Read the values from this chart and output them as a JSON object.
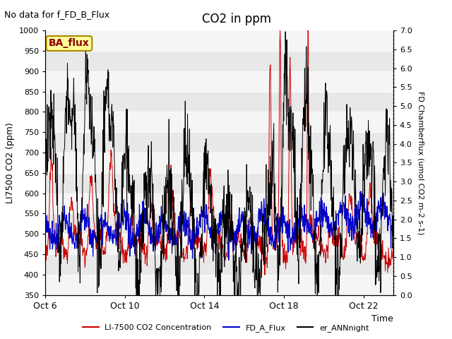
{
  "title": "CO2 in ppm",
  "no_data_text": "No data for f_FD_B_Flux",
  "xlabel": "Time",
  "ylabel_left": "LI7500 CO2 (ppm)",
  "ylabel_right": "FD Chamberflux (umol CO2 m-2 s-1)",
  "ylim_left": [
    350,
    1000
  ],
  "ylim_right": [
    0.0,
    7.0
  ],
  "yticks_left": [
    350,
    400,
    450,
    500,
    550,
    600,
    650,
    700,
    750,
    800,
    850,
    900,
    950,
    1000
  ],
  "yticks_right": [
    0.0,
    0.5,
    1.0,
    1.5,
    2.0,
    2.5,
    3.0,
    3.5,
    4.0,
    4.5,
    5.0,
    5.5,
    6.0,
    6.5,
    7.0
  ],
  "xtick_labels": [
    "Oct 6",
    "Oct 10",
    "Oct 14",
    "Oct 18",
    "Oct 22"
  ],
  "xtick_positions": [
    0,
    4,
    8,
    12,
    16
  ],
  "xlim": [
    0,
    17.5
  ],
  "n_points": 1050,
  "n_days": 17.5,
  "color_red": "#CC0000",
  "color_blue": "#0000CC",
  "color_black": "#000000",
  "legend_label_red": "LI-7500 CO2 Concentration",
  "legend_label_blue": "FD_A_Flux",
  "legend_label_black": "er_ANNnight",
  "ba_flux_label": "BA_flux",
  "ba_flux_bg": "#FFFF99",
  "ba_flux_edge": "#AA8800",
  "plot_bg": "#E8E8E8",
  "band_color": "#FFFFFF"
}
